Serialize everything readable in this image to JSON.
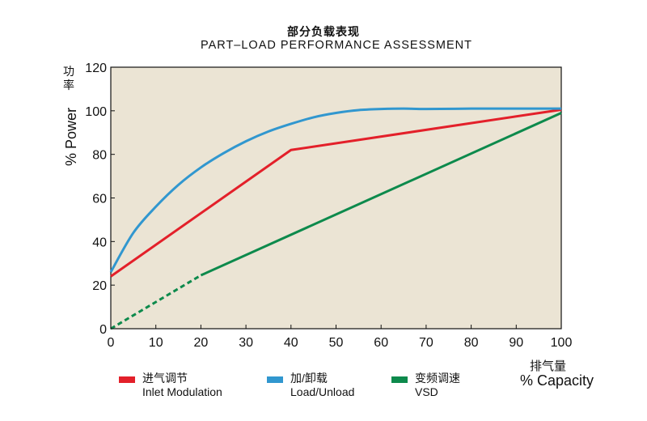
{
  "chart_data": {
    "type": "line",
    "title": "部分负载表现",
    "subtitle": "PART–LOAD PERFORMANCE ASSESSMENT",
    "ylabel": "% Power",
    "ylabel_cn": "功率",
    "xlabel": "% Capacity",
    "xlabel_cn": "排气量",
    "xlim": [
      0,
      100
    ],
    "ylim": [
      0,
      120
    ],
    "xticks": [
      0,
      10,
      20,
      30,
      40,
      50,
      60,
      70,
      80,
      90,
      100
    ],
    "yticks": [
      0,
      20,
      40,
      60,
      80,
      100,
      120
    ],
    "grid": false,
    "background": "#ebe4d4",
    "legend_position": "bottom",
    "series": [
      {
        "name": "进气调节",
        "name_en": "Inlet Modulation",
        "color": "#e3202a",
        "x": [
          0,
          40,
          100
        ],
        "y": [
          24,
          82,
          100.5
        ]
      },
      {
        "name": "加/卸载",
        "name_en": "Load/Unload",
        "color": "#3197cf",
        "x": [
          0,
          5,
          10,
          15,
          20,
          25,
          30,
          35,
          40,
          45,
          50,
          55,
          60,
          65,
          70,
          80,
          90,
          100
        ],
        "y": [
          26,
          44,
          56,
          66,
          74,
          80.5,
          86,
          90.5,
          94,
          97,
          99,
          100.3,
          100.8,
          101,
          100.8,
          101,
          101,
          101
        ]
      },
      {
        "name": "变频调速",
        "name_en": "VSD",
        "color": "#0d8a4c",
        "x": [
          0,
          20,
          100
        ],
        "y": [
          0,
          24.5,
          99
        ],
        "dashed_until_x": 20
      }
    ]
  }
}
